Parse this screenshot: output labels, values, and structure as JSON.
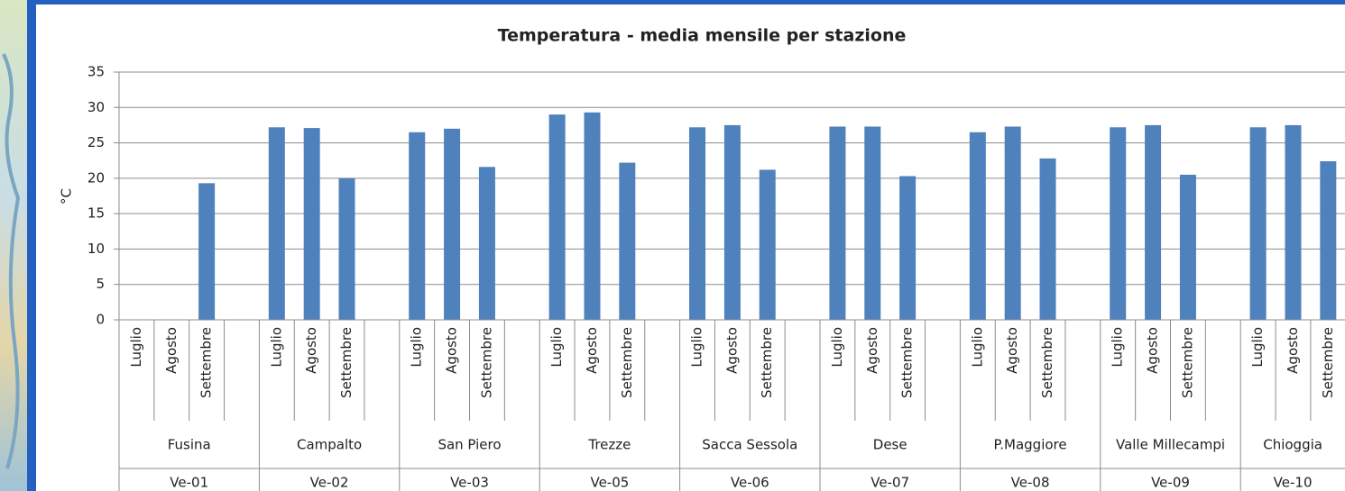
{
  "chart_data": {
    "type": "bar",
    "title": "Temperatura  - media mensile  per stazione",
    "y_label": "°C",
    "categories": [
      "Luglio",
      "Agosto",
      "Settembre",
      null,
      "Luglio",
      "Agosto",
      "Settembre",
      null,
      "Luglio",
      "Agosto",
      "Settembre",
      null,
      "Luglio",
      "Agosto",
      "Settembre",
      null,
      "Luglio",
      "Agosto",
      "Settembre",
      null,
      "Luglio",
      "Agosto",
      "Settembre",
      null,
      "Luglio",
      "Agosto",
      "Settembre",
      null,
      "Luglio",
      "Agosto",
      "Settembre",
      null,
      "Luglio",
      "Agosto",
      "Settembre",
      null
    ],
    "values": [
      null,
      null,
      19.3,
      null,
      27.2,
      27.1,
      20.0,
      null,
      26.5,
      27.0,
      21.6,
      null,
      29.0,
      29.3,
      22.2,
      null,
      27.2,
      27.5,
      21.2,
      null,
      27.3,
      27.3,
      20.3,
      null,
      26.5,
      27.3,
      22.8,
      null,
      27.2,
      27.5,
      20.5,
      null,
      27.2,
      27.5,
      22.4,
      null
    ],
    "stations": [
      "Fusina",
      "Campalto",
      "San Piero",
      "Trezze",
      "Sacca Sessola",
      "Dese",
      "P.Maggiore",
      "Valle Millecampi",
      "Chioggia"
    ],
    "codes": [
      "Ve-01",
      "Ve-02",
      "Ve-03",
      "Ve-05",
      "Ve-06",
      "Ve-07",
      "Ve-08",
      "Ve-09",
      "Ve-10"
    ],
    "color": "#4f81bd",
    "ylim": [
      0,
      35
    ],
    "yticks": [
      0,
      5,
      10,
      15,
      20,
      25,
      30,
      35
    ],
    "grid": true
  }
}
